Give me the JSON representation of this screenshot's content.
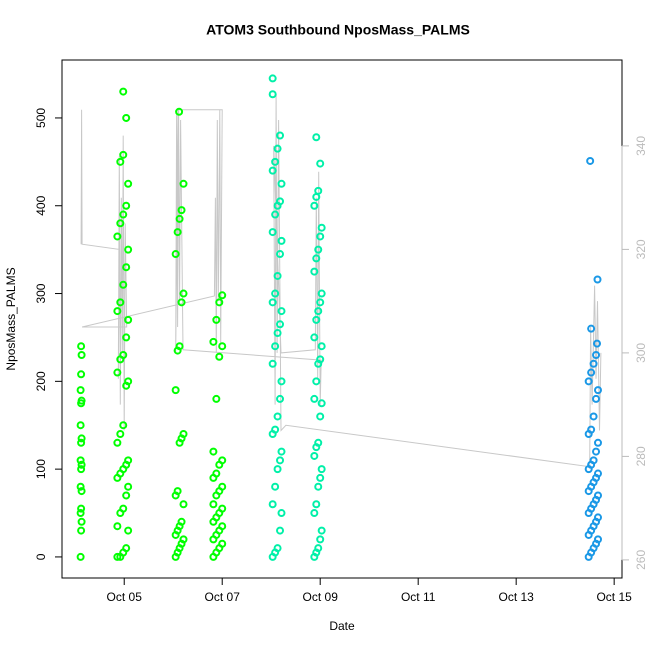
{
  "chart_data": {
    "type": "scatter",
    "title": "ATOM3 Southbound NposMass_PALMS",
    "x_label": "Date",
    "y_label": "NposMass_PALMS",
    "xlim": [
      3.73,
      15.16
    ],
    "xticks": [
      {
        "value": 5,
        "label": "Oct 05"
      },
      {
        "value": 7,
        "label": "Oct 07"
      },
      {
        "value": 9,
        "label": "Oct 09"
      },
      {
        "value": 11,
        "label": "Oct 11"
      },
      {
        "value": 13,
        "label": "Oct 13"
      },
      {
        "value": 15,
        "label": "Oct 15"
      }
    ],
    "ylim": [
      -24,
      566
    ],
    "yticks": [
      0,
      100,
      200,
      300,
      400,
      500
    ],
    "y2lim": [
      256.5,
      356.6
    ],
    "y2ticks": [
      260,
      280,
      300,
      320,
      340
    ],
    "series": [
      {
        "color": "#00ff00",
        "x": [
          4.11,
          4.12,
          4.13,
          4.11,
          4.12,
          4.13,
          4.11,
          4.12,
          4.13,
          4.11,
          4.12,
          4.13,
          4.11,
          4.12,
          4.13,
          4.11,
          4.12,
          4.13,
          4.12,
          4.86,
          4.92,
          4.98,
          5.04,
          5.08,
          4.86,
          4.92,
          4.98,
          5.04,
          5.08,
          4.86,
          4.92,
          4.98,
          5.04,
          5.08,
          4.86,
          4.92,
          4.98,
          5.04,
          5.08,
          4.86,
          4.92,
          4.98,
          5.04,
          5.08,
          4.86,
          4.92,
          4.98,
          5.04,
          5.08,
          4.86,
          4.92,
          4.98,
          5.04,
          5.08,
          4.92,
          4.98,
          5.04,
          4.98,
          6.05,
          6.09,
          6.13,
          6.17,
          6.21,
          6.05,
          6.09,
          6.13,
          6.17,
          6.21,
          6.05,
          6.09,
          6.13,
          6.17,
          6.21,
          6.05,
          6.09,
          6.13,
          6.17,
          6.21,
          6.05,
          6.09,
          6.13,
          6.17,
          6.21,
          6.12,
          6.82,
          6.88,
          6.94,
          7.0,
          6.82,
          6.88,
          6.94,
          7.0,
          6.82,
          6.88,
          6.94,
          7.0,
          6.82,
          6.88,
          6.94,
          7.0,
          6.82,
          6.88,
          6.94,
          7.0,
          6.82,
          6.88,
          6.94,
          7.0,
          6.82,
          6.88,
          6.94,
          7.0
        ],
        "values": [
          0,
          30,
          40,
          50,
          55,
          75,
          80,
          100,
          105,
          110,
          130,
          135,
          150,
          175,
          178,
          190,
          208,
          230,
          240,
          0,
          0,
          5,
          10,
          30,
          35,
          50,
          55,
          70,
          80,
          90,
          95,
          100,
          105,
          110,
          130,
          140,
          150,
          195,
          200,
          210,
          225,
          230,
          250,
          270,
          280,
          290,
          310,
          330,
          350,
          365,
          380,
          390,
          400,
          425,
          450,
          458,
          500,
          530,
          0,
          5,
          10,
          15,
          20,
          25,
          30,
          35,
          40,
          60,
          70,
          75,
          130,
          135,
          140,
          190,
          235,
          240,
          290,
          300,
          345,
          370,
          385,
          395,
          425,
          507,
          0,
          5,
          10,
          15,
          20,
          25,
          30,
          35,
          40,
          45,
          50,
          55,
          60,
          70,
          75,
          80,
          90,
          95,
          105,
          110,
          120,
          180,
          228,
          240,
          245,
          270,
          290,
          298
        ]
      },
      {
        "color": "#00f0a8",
        "x": [
          8.03,
          8.08,
          8.13,
          8.18,
          8.21,
          8.03,
          8.08,
          8.13,
          8.18,
          8.21,
          8.03,
          8.08,
          8.13,
          8.18,
          8.21,
          8.03,
          8.08,
          8.13,
          8.18,
          8.21,
          8.03,
          8.08,
          8.13,
          8.18,
          8.21,
          8.03,
          8.08,
          8.13,
          8.18,
          8.21,
          8.03,
          8.08,
          8.13,
          8.18,
          8.03,
          8.03,
          8.88,
          8.92,
          8.96,
          9.0,
          9.03,
          8.88,
          8.92,
          8.96,
          9.0,
          9.03,
          8.88,
          8.92,
          8.96,
          9.0,
          9.03,
          8.88,
          8.92,
          8.96,
          9.0,
          9.03,
          8.88,
          8.92,
          8.96,
          9.0,
          9.03,
          8.88,
          8.92,
          8.96,
          9.0,
          9.03,
          8.88,
          8.92,
          8.96,
          9.0,
          8.92
        ],
        "values": [
          0,
          5,
          10,
          30,
          50,
          60,
          80,
          100,
          110,
          120,
          140,
          145,
          160,
          180,
          200,
          220,
          240,
          255,
          265,
          280,
          290,
          300,
          320,
          345,
          360,
          370,
          390,
          400,
          405,
          425,
          440,
          450,
          465,
          480,
          527,
          545,
          0,
          5,
          10,
          20,
          30,
          50,
          60,
          80,
          90,
          100,
          115,
          125,
          130,
          160,
          175,
          180,
          200,
          220,
          225,
          240,
          250,
          270,
          280,
          290,
          300,
          325,
          340,
          350,
          365,
          375,
          400,
          410,
          417,
          448,
          478
        ]
      },
      {
        "color": "#1a98e6",
        "x": [
          14.48,
          14.53,
          14.58,
          14.63,
          14.67,
          14.48,
          14.53,
          14.58,
          14.63,
          14.67,
          14.48,
          14.53,
          14.58,
          14.63,
          14.67,
          14.48,
          14.53,
          14.58,
          14.63,
          14.67,
          14.48,
          14.53,
          14.58,
          14.63,
          14.67,
          14.48,
          14.53,
          14.58,
          14.63,
          14.67,
          14.48,
          14.53,
          14.58,
          14.63,
          14.65,
          14.53,
          14.66,
          14.51
        ],
        "values": [
          0,
          5,
          10,
          15,
          20,
          25,
          30,
          35,
          40,
          45,
          50,
          55,
          60,
          65,
          70,
          75,
          80,
          85,
          90,
          95,
          100,
          105,
          110,
          120,
          130,
          140,
          145,
          160,
          180,
          190,
          200,
          210,
          220,
          230,
          243,
          260,
          316,
          451
        ]
      },
      {
        "type": "line",
        "axis": "y2",
        "color": "#c8c8c8",
        "x": [
          4.12,
          4.13,
          4.14,
          4.9,
          4.88,
          4.9,
          4.92,
          4.94,
          4.96,
          4.98,
          5.0,
          5.02,
          5.05,
          4.14,
          6.84,
          6.86,
          6.88,
          6.9,
          6.92,
          6.95,
          6.97,
          7.0,
          6.1,
          6.05,
          6.07,
          6.09,
          6.11,
          6.13,
          6.15,
          6.2,
          9.02,
          9.0,
          8.97,
          8.95,
          8.92,
          8.9,
          8.2,
          8.05,
          8.08,
          8.1,
          8.12,
          8.15,
          8.2,
          8.3,
          14.5,
          14.52,
          14.55,
          14.6,
          14.63,
          14.66,
          14.7,
          14.73
        ],
        "values": [
          321,
          347,
          321,
          320,
          295,
          338,
          290,
          330,
          300,
          342,
          285,
          325,
          305,
          305,
          311,
          330,
          300,
          345,
          310,
          347,
          302,
          347,
          347,
          300,
          346,
          305,
          347,
          310,
          345,
          300.6,
          298.6,
          290,
          335,
          295,
          330,
          300.6,
          300,
          340,
          290,
          350,
          300,
          345,
          285,
          286,
          278,
          305,
          290,
          313,
          295,
          310,
          285,
          300
        ]
      }
    ]
  }
}
